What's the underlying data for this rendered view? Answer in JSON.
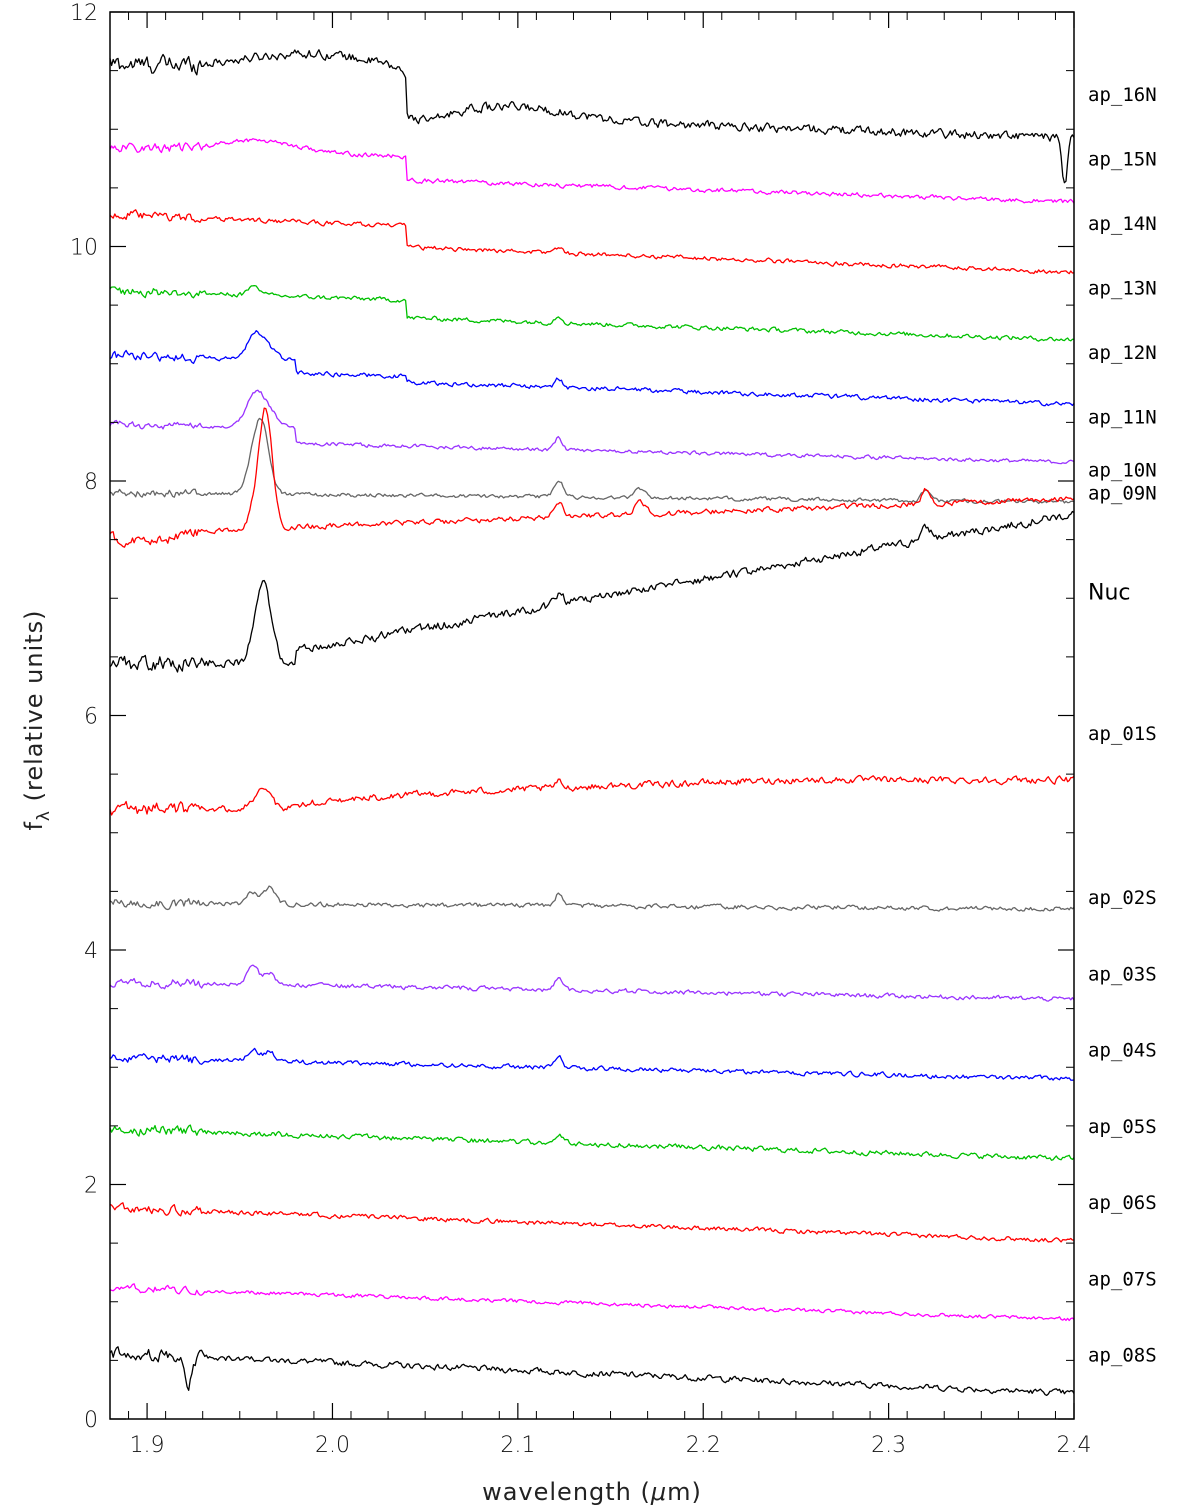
{
  "chart_data": {
    "type": "line",
    "xlabel": "wavelength (μm)",
    "ylabel": "fλ (relative units)",
    "ylabel_main": "f",
    "ylabel_sub": "λ",
    "ylabel_rest": " (relative units)",
    "xlabel_pre": "wavelength (",
    "xlabel_mu": "μ",
    "xlabel_post": "m)",
    "xlim": [
      1.88,
      2.4
    ],
    "ylim": [
      0,
      12
    ],
    "x_ticks": [
      1.9,
      2.0,
      2.1,
      2.2,
      2.3,
      2.4
    ],
    "x_tick_labels": [
      "1.9",
      "2.0",
      "2.1",
      "2.2",
      "2.3",
      "2.4"
    ],
    "y_ticks": [
      0,
      2,
      4,
      6,
      8,
      10,
      12
    ],
    "y_tick_labels": [
      "0",
      "2",
      "4",
      "6",
      "8",
      "10",
      "12"
    ],
    "grid": false,
    "legend": "series labels at right edge",
    "series": [
      {
        "name": "ap_16N",
        "color": "#000000",
        "start": 11.38,
        "end": 11.1,
        "label_y": 11.3,
        "features": [
          {
            "x": 1.99,
            "w": 0.035,
            "a": 0.15
          },
          {
            "x": 2.04,
            "s": -0.35
          },
          {
            "x": 2.05,
            "w": 0.01,
            "a": -0.1
          },
          {
            "x": 2.1,
            "w": 0.03,
            "a": 0.1
          },
          {
            "x": 2.395,
            "w": 0.0015,
            "a": -0.4
          }
        ],
        "noise": 0.06
      },
      {
        "name": "ap_15N",
        "color": "#ff00ff",
        "start": 10.75,
        "end": 10.48,
        "label_y": 10.75,
        "features": [
          {
            "x": 1.96,
            "w": 0.02,
            "a": 0.1
          },
          {
            "x": 2.04,
            "s": -0.2
          }
        ],
        "noise": 0.03
      },
      {
        "name": "ap_14N",
        "color": "#ff0000",
        "start": 10.18,
        "end": 9.87,
        "label_y": 10.2,
        "features": [
          {
            "x": 2.04,
            "s": -0.18
          },
          {
            "x": 2.122,
            "w": 0.002,
            "a": 0.05
          }
        ],
        "noise": 0.03
      },
      {
        "name": "ap_13N",
        "color": "#00c000",
        "start": 9.55,
        "end": 9.28,
        "label_y": 9.65,
        "features": [
          {
            "x": 1.958,
            "w": 0.003,
            "a": 0.08
          },
          {
            "x": 2.04,
            "s": -0.15
          },
          {
            "x": 2.122,
            "w": 0.002,
            "a": 0.06
          }
        ],
        "noise": 0.03
      },
      {
        "name": "ap_12N",
        "color": "#0000ff",
        "start": 9.0,
        "end": 8.73,
        "label_y": 9.1,
        "features": [
          {
            "x": 1.958,
            "w": 0.004,
            "a": 0.2
          },
          {
            "x": 1.965,
            "w": 0.005,
            "a": 0.1
          },
          {
            "x": 1.98,
            "s": -0.1
          },
          {
            "x": 2.04,
            "s": -0.05
          },
          {
            "x": 2.122,
            "w": 0.002,
            "a": 0.07
          }
        ],
        "noise": 0.03
      },
      {
        "name": "ap_11N",
        "color": "#9933ff",
        "start": 8.42,
        "end": 8.22,
        "label_y": 8.55,
        "features": [
          {
            "x": 1.958,
            "w": 0.005,
            "a": 0.28
          },
          {
            "x": 1.966,
            "w": 0.005,
            "a": 0.12
          },
          {
            "x": 1.98,
            "s": -0.12
          },
          {
            "x": 2.122,
            "w": 0.002,
            "a": 0.1
          }
        ],
        "noise": 0.025
      },
      {
        "name": "ap_10N",
        "color": "#666666",
        "start": 7.9,
        "end": 7.82,
        "label_y": 8.1,
        "features": [
          {
            "x": 1.962,
            "w": 0.004,
            "a": 0.55
          },
          {
            "x": 1.957,
            "w": 0.004,
            "a": 0.2
          },
          {
            "x": 2.122,
            "w": 0.0025,
            "a": 0.14
          },
          {
            "x": 2.166,
            "w": 0.003,
            "a": 0.08
          },
          {
            "x": 2.32,
            "w": 0.002,
            "a": 0.1
          }
        ],
        "noise": 0.025
      },
      {
        "name": "ap_09N",
        "color": "#ff0000",
        "start": 7.55,
        "end": 7.85,
        "label_y": 7.9,
        "features": [
          {
            "x": 1.964,
            "w": 0.0035,
            "a": 1.0
          },
          {
            "x": 1.958,
            "w": 0.003,
            "a": 0.15
          },
          {
            "x": 2.122,
            "w": 0.0025,
            "a": 0.12
          },
          {
            "x": 2.166,
            "w": 0.003,
            "a": 0.1
          },
          {
            "x": 2.32,
            "w": 0.002,
            "a": 0.12
          },
          {
            "x": 1.9,
            "w": 0.015,
            "a": -0.08
          }
        ],
        "noise": 0.035
      },
      {
        "name": "Nuc",
        "color": "#000000",
        "start": 6.45,
        "end": 7.72,
        "label_y": 7.05,
        "curve": "nuc",
        "features": [
          {
            "x": 1.963,
            "w": 0.004,
            "a": 0.65
          },
          {
            "x": 1.957,
            "w": 0.003,
            "a": 0.1
          },
          {
            "x": 2.122,
            "w": 0.0025,
            "a": 0.1
          },
          {
            "x": 2.32,
            "w": 0.003,
            "a": 0.1
          }
        ],
        "noise": 0.055
      },
      {
        "name": "ap_01S",
        "color": "#ff0000",
        "start": 5.2,
        "end": 5.45,
        "label_y": 5.85,
        "curve": "ap01",
        "features": [
          {
            "x": 1.962,
            "w": 0.005,
            "a": 0.15
          },
          {
            "x": 2.122,
            "w": 0.002,
            "a": 0.05
          }
        ],
        "noise": 0.045
      },
      {
        "name": "ap_02S",
        "color": "#666666",
        "start": 4.4,
        "end": 4.35,
        "label_y": 4.45,
        "features": [
          {
            "x": 1.957,
            "w": 0.003,
            "a": 0.1
          },
          {
            "x": 1.966,
            "w": 0.003,
            "a": 0.14
          },
          {
            "x": 2.122,
            "w": 0.002,
            "a": 0.1
          }
        ],
        "noise": 0.03
      },
      {
        "name": "ap_03S",
        "color": "#9933ff",
        "start": 3.73,
        "end": 3.58,
        "label_y": 3.8,
        "features": [
          {
            "x": 1.957,
            "w": 0.003,
            "a": 0.15
          },
          {
            "x": 1.966,
            "w": 0.003,
            "a": 0.1
          },
          {
            "x": 2.122,
            "w": 0.002,
            "a": 0.1
          }
        ],
        "noise": 0.03
      },
      {
        "name": "ap_04S",
        "color": "#0000ff",
        "start": 3.08,
        "end": 2.9,
        "label_y": 3.15,
        "features": [
          {
            "x": 1.957,
            "w": 0.003,
            "a": 0.1
          },
          {
            "x": 1.966,
            "w": 0.003,
            "a": 0.08
          },
          {
            "x": 2.122,
            "w": 0.002,
            "a": 0.1
          }
        ],
        "noise": 0.03
      },
      {
        "name": "ap_05S",
        "color": "#00c000",
        "start": 2.47,
        "end": 2.22,
        "label_y": 2.5,
        "features": [
          {
            "x": 2.122,
            "w": 0.002,
            "a": 0.08
          }
        ],
        "noise": 0.035
      },
      {
        "name": "ap_06S",
        "color": "#ff0000",
        "start": 1.8,
        "end": 1.52,
        "label_y": 1.85,
        "features": [],
        "noise": 0.03
      },
      {
        "name": "ap_07S",
        "color": "#ff00ff",
        "start": 1.12,
        "end": 0.85,
        "label_y": 1.2,
        "features": [],
        "noise": 0.025
      },
      {
        "name": "ap_08S",
        "color": "#000000",
        "start": 0.56,
        "end": 0.22,
        "label_y": 0.55,
        "features": [
          {
            "x": 1.922,
            "w": 0.002,
            "a": -0.25
          }
        ],
        "noise": 0.04
      }
    ]
  }
}
